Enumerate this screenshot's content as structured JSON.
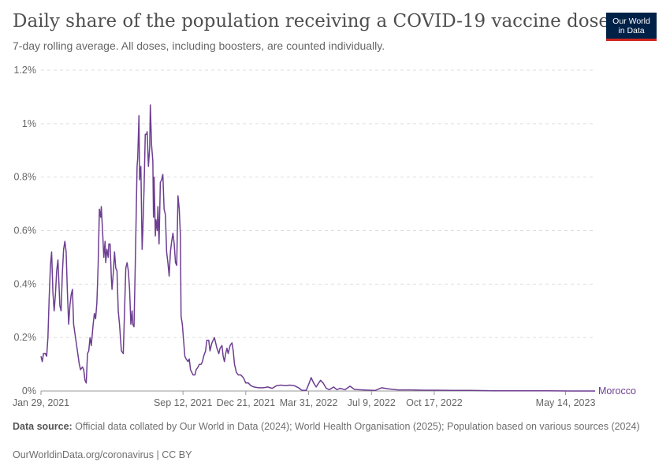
{
  "header": {
    "title": "Daily share of the population receiving a COVID-19 vaccine dose",
    "subtitle": "7-day rolling average. All doses, including boosters, are counted individually.",
    "logo_line1": "Our World",
    "logo_line2": "in Data"
  },
  "footer": {
    "source_label": "Data source:",
    "source_text": "Official data collated by Our World in Data (2024); World Health Organisation (2025); Population based on various sources (2024)",
    "credit": "OurWorldinData.org/coronavirus | CC BY"
  },
  "colors": {
    "series": "#6d3e91",
    "grid": "#dddddd",
    "axis": "#999999",
    "logo_bg": "#002147",
    "logo_accent": "#ce261e"
  },
  "chart_data": {
    "type": "line",
    "title": "Daily share of the population receiving a COVID-19 vaccine dose",
    "subtitle": "7-day rolling average. All doses, including boosters, are counted individually.",
    "xlabel": "",
    "ylabel": "",
    "xlim": [
      "2021-01-29",
      "2023-06-30"
    ],
    "ylim": [
      0,
      1.2
    ],
    "y_unit": "%",
    "grid": "horizontal dashed",
    "legend": "inline label at line end",
    "y_ticks": [
      {
        "value": 0,
        "label": "0%"
      },
      {
        "value": 0.2,
        "label": "0.2%"
      },
      {
        "value": 0.4,
        "label": "0.4%"
      },
      {
        "value": 0.6,
        "label": "0.6%"
      },
      {
        "value": 0.8,
        "label": "0.8%"
      },
      {
        "value": 1.0,
        "label": "1%"
      },
      {
        "value": 1.2,
        "label": "1.2%"
      }
    ],
    "x_ticks": [
      {
        "date": "2021-01-29",
        "label": "Jan 29, 2021"
      },
      {
        "date": "2021-09-12",
        "label": "Sep 12, 2021"
      },
      {
        "date": "2021-12-21",
        "label": "Dec 21, 2021"
      },
      {
        "date": "2022-03-31",
        "label": "Mar 31, 2022"
      },
      {
        "date": "2022-07-09",
        "label": "Jul 9, 2022"
      },
      {
        "date": "2022-10-17",
        "label": "Oct 17, 2022"
      },
      {
        "date": "2023-05-14",
        "label": "May 14, 2023"
      }
    ],
    "series": [
      {
        "name": "Morocco",
        "points": [
          [
            "2021-01-29",
            0.13
          ],
          [
            "2021-01-31",
            0.11
          ],
          [
            "2021-02-02",
            0.14
          ],
          [
            "2021-02-05",
            0.14
          ],
          [
            "2021-02-07",
            0.13
          ],
          [
            "2021-02-09",
            0.2
          ],
          [
            "2021-02-11",
            0.35
          ],
          [
            "2021-02-13",
            0.47
          ],
          [
            "2021-02-15",
            0.52
          ],
          [
            "2021-02-17",
            0.37
          ],
          [
            "2021-02-19",
            0.3
          ],
          [
            "2021-02-21",
            0.36
          ],
          [
            "2021-02-23",
            0.45
          ],
          [
            "2021-02-25",
            0.49
          ],
          [
            "2021-02-27",
            0.38
          ],
          [
            "2021-02-28",
            0.32
          ],
          [
            "2021-03-02",
            0.3
          ],
          [
            "2021-03-04",
            0.44
          ],
          [
            "2021-03-06",
            0.53
          ],
          [
            "2021-03-08",
            0.56
          ],
          [
            "2021-03-10",
            0.52
          ],
          [
            "2021-03-12",
            0.37
          ],
          [
            "2021-03-14",
            0.25
          ],
          [
            "2021-03-16",
            0.32
          ],
          [
            "2021-03-18",
            0.36
          ],
          [
            "2021-03-20",
            0.38
          ],
          [
            "2021-03-22",
            0.25
          ],
          [
            "2021-03-25",
            0.2
          ],
          [
            "2021-03-28",
            0.15
          ],
          [
            "2021-03-31",
            0.1
          ],
          [
            "2021-04-02",
            0.08
          ],
          [
            "2021-04-05",
            0.09
          ],
          [
            "2021-04-07",
            0.08
          ],
          [
            "2021-04-09",
            0.04
          ],
          [
            "2021-04-11",
            0.03
          ],
          [
            "2021-04-13",
            0.14
          ],
          [
            "2021-04-15",
            0.15
          ],
          [
            "2021-04-17",
            0.2
          ],
          [
            "2021-04-19",
            0.17
          ],
          [
            "2021-04-22",
            0.25
          ],
          [
            "2021-04-24",
            0.29
          ],
          [
            "2021-04-26",
            0.27
          ],
          [
            "2021-04-28",
            0.33
          ],
          [
            "2021-04-30",
            0.47
          ],
          [
            "2021-05-02",
            0.68
          ],
          [
            "2021-05-04",
            0.65
          ],
          [
            "2021-05-05",
            0.69
          ],
          [
            "2021-05-07",
            0.6
          ],
          [
            "2021-05-09",
            0.5
          ],
          [
            "2021-05-11",
            0.56
          ],
          [
            "2021-05-12",
            0.48
          ],
          [
            "2021-05-14",
            0.53
          ],
          [
            "2021-05-16",
            0.5
          ],
          [
            "2021-05-17",
            0.55
          ],
          [
            "2021-05-19",
            0.55
          ],
          [
            "2021-05-21",
            0.42
          ],
          [
            "2021-05-22",
            0.38
          ],
          [
            "2021-05-24",
            0.44
          ],
          [
            "2021-05-26",
            0.52
          ],
          [
            "2021-05-28",
            0.46
          ],
          [
            "2021-05-30",
            0.45
          ],
          [
            "2021-06-01",
            0.3
          ],
          [
            "2021-06-03",
            0.25
          ],
          [
            "2021-06-06",
            0.15
          ],
          [
            "2021-06-09",
            0.14
          ],
          [
            "2021-06-11",
            0.3
          ],
          [
            "2021-06-13",
            0.46
          ],
          [
            "2021-06-15",
            0.48
          ],
          [
            "2021-06-17",
            0.45
          ],
          [
            "2021-06-19",
            0.38
          ],
          [
            "2021-06-21",
            0.25
          ],
          [
            "2021-06-23",
            0.3
          ],
          [
            "2021-06-24",
            0.25
          ],
          [
            "2021-06-26",
            0.24
          ],
          [
            "2021-06-28",
            0.47
          ],
          [
            "2021-07-01",
            0.84
          ],
          [
            "2021-07-02",
            0.87
          ],
          [
            "2021-07-04",
            1.03
          ],
          [
            "2021-07-05",
            0.79
          ],
          [
            "2021-07-07",
            0.84
          ],
          [
            "2021-07-09",
            0.53
          ],
          [
            "2021-07-10",
            0.59
          ],
          [
            "2021-07-12",
            0.75
          ],
          [
            "2021-07-14",
            0.96
          ],
          [
            "2021-07-16",
            0.96
          ],
          [
            "2021-07-17",
            0.97
          ],
          [
            "2021-07-19",
            0.84
          ],
          [
            "2021-07-21",
            0.91
          ],
          [
            "2021-07-22",
            1.07
          ],
          [
            "2021-07-24",
            0.92
          ],
          [
            "2021-07-26",
            0.86
          ],
          [
            "2021-07-27",
            0.65
          ],
          [
            "2021-07-28",
            0.8
          ],
          [
            "2021-07-30",
            0.58
          ],
          [
            "2021-07-31",
            0.64
          ],
          [
            "2021-08-02",
            0.6
          ],
          [
            "2021-08-03",
            0.69
          ],
          [
            "2021-08-05",
            0.55
          ],
          [
            "2021-08-07",
            0.78
          ],
          [
            "2021-08-09",
            0.79
          ],
          [
            "2021-08-11",
            0.81
          ],
          [
            "2021-08-13",
            0.68
          ],
          [
            "2021-08-15",
            0.66
          ],
          [
            "2021-08-17",
            0.52
          ],
          [
            "2021-08-19",
            0.48
          ],
          [
            "2021-08-21",
            0.43
          ],
          [
            "2021-08-23",
            0.52
          ],
          [
            "2021-08-25",
            0.56
          ],
          [
            "2021-08-27",
            0.59
          ],
          [
            "2021-08-29",
            0.55
          ],
          [
            "2021-08-31",
            0.48
          ],
          [
            "2021-09-02",
            0.47
          ],
          [
            "2021-09-04",
            0.73
          ],
          [
            "2021-09-06",
            0.68
          ],
          [
            "2021-09-08",
            0.58
          ],
          [
            "2021-09-09",
            0.28
          ],
          [
            "2021-09-11",
            0.25
          ],
          [
            "2021-09-13",
            0.19
          ],
          [
            "2021-09-15",
            0.13
          ],
          [
            "2021-09-17",
            0.12
          ],
          [
            "2021-09-20",
            0.11
          ],
          [
            "2021-09-22",
            0.12
          ],
          [
            "2021-09-24",
            0.08
          ],
          [
            "2021-09-26",
            0.07
          ],
          [
            "2021-09-28",
            0.06
          ],
          [
            "2021-10-01",
            0.06
          ],
          [
            "2021-10-03",
            0.08
          ],
          [
            "2021-10-06",
            0.09
          ],
          [
            "2021-10-08",
            0.1
          ],
          [
            "2021-10-11",
            0.1
          ],
          [
            "2021-10-13",
            0.11
          ],
          [
            "2021-10-15",
            0.13
          ],
          [
            "2021-10-18",
            0.15
          ],
          [
            "2021-10-20",
            0.19
          ],
          [
            "2021-10-23",
            0.19
          ],
          [
            "2021-10-25",
            0.15
          ],
          [
            "2021-10-28",
            0.18
          ],
          [
            "2021-10-30",
            0.19
          ],
          [
            "2021-11-01",
            0.2
          ],
          [
            "2021-11-03",
            0.18
          ],
          [
            "2021-11-05",
            0.16
          ],
          [
            "2021-11-08",
            0.14
          ],
          [
            "2021-11-10",
            0.16
          ],
          [
            "2021-11-13",
            0.17
          ],
          [
            "2021-11-15",
            0.13
          ],
          [
            "2021-11-17",
            0.11
          ],
          [
            "2021-11-19",
            0.14
          ],
          [
            "2021-11-21",
            0.16
          ],
          [
            "2021-11-23",
            0.14
          ],
          [
            "2021-11-26",
            0.17
          ],
          [
            "2021-11-29",
            0.18
          ],
          [
            "2021-12-01",
            0.15
          ],
          [
            "2021-12-03",
            0.1
          ],
          [
            "2021-12-06",
            0.07
          ],
          [
            "2021-12-09",
            0.06
          ],
          [
            "2021-12-13",
            0.06
          ],
          [
            "2021-12-17",
            0.05
          ],
          [
            "2021-12-21",
            0.03
          ],
          [
            "2021-12-25",
            0.03
          ],
          [
            "2021-12-29",
            0.02
          ],
          [
            "2022-01-03",
            0.015
          ],
          [
            "2022-01-10",
            0.012
          ],
          [
            "2022-01-18",
            0.012
          ],
          [
            "2022-01-25",
            0.015
          ],
          [
            "2022-02-01",
            0.01
          ],
          [
            "2022-02-08",
            0.02
          ],
          [
            "2022-02-15",
            0.022
          ],
          [
            "2022-02-22",
            0.02
          ],
          [
            "2022-03-01",
            0.022
          ],
          [
            "2022-03-08",
            0.02
          ],
          [
            "2022-03-15",
            0.012
          ],
          [
            "2022-03-20",
            0.003
          ],
          [
            "2022-03-27",
            0.002
          ],
          [
            "2022-04-01",
            0.03
          ],
          [
            "2022-04-04",
            0.05
          ],
          [
            "2022-04-08",
            0.03
          ],
          [
            "2022-04-12",
            0.015
          ],
          [
            "2022-04-16",
            0.03
          ],
          [
            "2022-04-19",
            0.04
          ],
          [
            "2022-04-23",
            0.03
          ],
          [
            "2022-04-28",
            0.01
          ],
          [
            "2022-05-03",
            0.005
          ],
          [
            "2022-05-10",
            0.015
          ],
          [
            "2022-05-15",
            0.005
          ],
          [
            "2022-05-20",
            0.01
          ],
          [
            "2022-05-28",
            0.005
          ],
          [
            "2022-06-05",
            0.018
          ],
          [
            "2022-06-12",
            0.006
          ],
          [
            "2022-06-25",
            0.004
          ],
          [
            "2022-07-15",
            0.002
          ],
          [
            "2022-07-25",
            0.012
          ],
          [
            "2022-08-05",
            0.008
          ],
          [
            "2022-08-20",
            0.004
          ],
          [
            "2022-09-10",
            0.004
          ],
          [
            "2022-10-01",
            0.003
          ],
          [
            "2022-10-20",
            0.003
          ],
          [
            "2022-11-15",
            0.002
          ],
          [
            "2022-12-15",
            0.002
          ],
          [
            "2023-01-20",
            0.001
          ],
          [
            "2023-03-01",
            0.001
          ],
          [
            "2023-04-15",
            0.001
          ],
          [
            "2023-05-25",
            0.0
          ],
          [
            "2023-06-30",
            0.0
          ]
        ]
      }
    ]
  }
}
